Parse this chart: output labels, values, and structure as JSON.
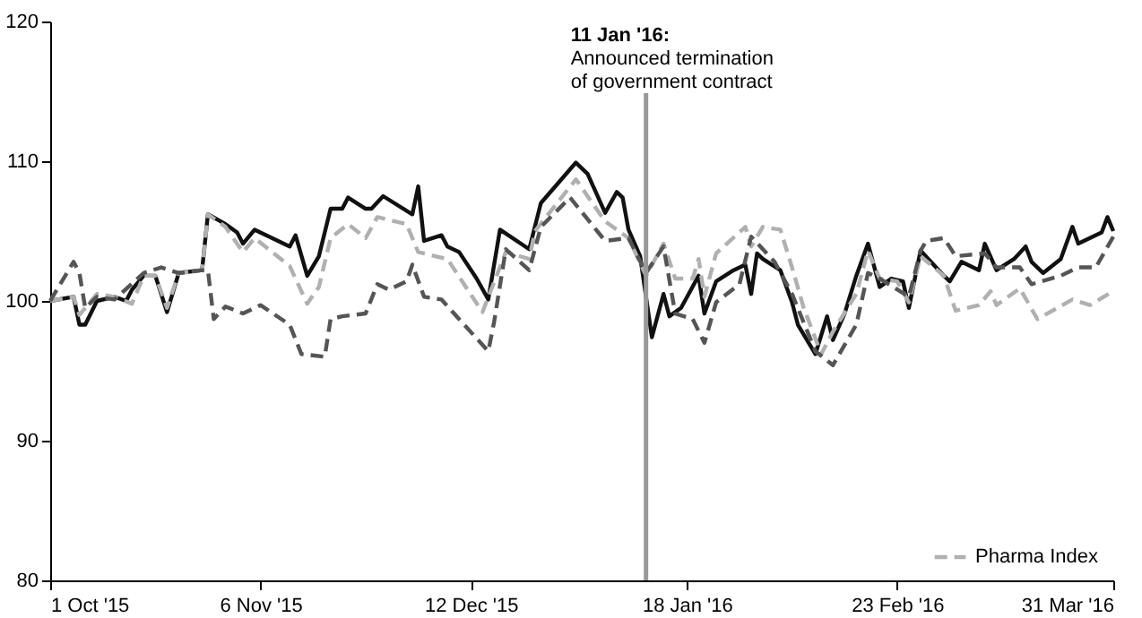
{
  "chart_data": {
    "type": "line",
    "xlim": [
      "2015-10-01",
      "2016-03-31"
    ],
    "xticks": [
      {
        "value": "2015-10-01",
        "label": "1 Oct '15"
      },
      {
        "value": "2015-11-06",
        "label": "6 Nov '15"
      },
      {
        "value": "2015-12-12",
        "label": "12 Dec '15"
      },
      {
        "value": "2016-01-18",
        "label": "18 Jan '16"
      },
      {
        "value": "2016-02-23",
        "label": "23 Feb '16"
      },
      {
        "value": "2016-03-31",
        "label": "31 Mar '16"
      }
    ],
    "ylim": [
      80,
      120
    ],
    "yticks": [
      80,
      90,
      100,
      110,
      120
    ],
    "grid": false,
    "legend": "bottom right",
    "ref_lines": [
      {
        "axis": "x",
        "value": "2016-01-11",
        "label": "11 Jan '16:\nAnnounced termination\nof government contract",
        "color": "#999999"
      }
    ],
    "series": [
      {
        "color": "#111111",
        "line_style": "solid",
        "x": [
          "2015-10-01",
          "2015-10-05",
          "2015-10-06",
          "2015-10-07",
          "2015-10-09",
          "2015-10-12",
          "2015-10-14",
          "2015-10-15",
          "2015-10-17",
          "2015-10-19",
          "2015-10-21",
          "2015-10-23",
          "2015-10-27",
          "2015-10-28",
          "2015-10-31",
          "2015-11-02",
          "2015-11-03",
          "2015-11-05",
          "2015-11-11",
          "2015-11-12",
          "2015-11-14",
          "2015-11-16",
          "2015-11-18",
          "2015-11-20",
          "2015-11-21",
          "2015-11-24",
          "2015-11-25",
          "2015-11-27",
          "2015-12-02",
          "2015-12-03",
          "2015-12-04",
          "2015-12-07",
          "2015-12-08",
          "2015-12-10",
          "2015-12-13",
          "2015-12-15",
          "2015-12-17",
          "2015-12-22",
          "2015-12-24",
          "2015-12-30",
          "2016-01-01",
          "2016-01-04",
          "2016-01-06",
          "2016-01-07",
          "2016-01-08",
          "2016-01-10",
          "2016-01-12",
          "2016-01-14",
          "2016-01-15",
          "2016-01-17",
          "2016-01-20",
          "2016-01-21",
          "2016-01-23",
          "2016-01-26",
          "2016-01-28",
          "2016-01-29",
          "2016-01-30",
          "2016-01-31",
          "2016-02-03",
          "2016-02-05",
          "2016-02-06",
          "2016-02-09",
          "2016-02-11",
          "2016-02-12",
          "2016-02-14",
          "2016-02-16",
          "2016-02-18",
          "2016-02-20",
          "2016-02-22",
          "2016-02-24",
          "2016-02-25",
          "2016-02-27",
          "2016-03-02",
          "2016-03-03",
          "2016-03-05",
          "2016-03-08",
          "2016-03-09",
          "2016-03-11",
          "2016-03-14",
          "2016-03-16",
          "2016-03-17",
          "2016-03-19",
          "2016-03-22",
          "2016-03-24",
          "2016-03-25",
          "2016-03-29",
          "2016-03-30",
          "2016-03-31"
        ],
        "values": [
          100,
          100.3,
          98.3,
          98.3,
          100,
          100.3,
          100,
          100.8,
          101.8,
          101.8,
          99.2,
          102,
          102.2,
          106.2,
          105.5,
          104.9,
          104.1,
          105.1,
          103.9,
          104.7,
          101.8,
          103.2,
          106.6,
          106.6,
          107.4,
          106.6,
          106.6,
          107.5,
          106.2,
          108.2,
          104.3,
          104.7,
          103.9,
          103.5,
          101.6,
          100.1,
          105.1,
          103.7,
          107,
          109.9,
          109.1,
          106.3,
          107.8,
          107.4,
          105.1,
          103.2,
          97.4,
          100.5,
          98.9,
          99.5,
          101.8,
          99.1,
          101.4,
          102.2,
          102.6,
          100.5,
          103.4,
          103,
          102.2,
          99.9,
          98.3,
          96.2,
          98.9,
          97.2,
          99.1,
          101.8,
          104.1,
          101,
          101.6,
          101.4,
          99.5,
          103.6,
          101.8,
          101.4,
          102.8,
          102.2,
          104.1,
          102.2,
          103,
          103.9,
          102.8,
          102,
          103,
          105.3,
          104.1,
          104.9,
          106,
          105
        ]
      },
      {
        "name": "Pharma Index",
        "color": "#b0b0b0",
        "line_style": "dashed",
        "x": [
          "2015-10-01",
          "2015-10-05",
          "2015-10-06",
          "2015-10-09",
          "2015-10-12",
          "2015-10-15",
          "2015-10-17",
          "2015-10-19",
          "2015-10-21",
          "2015-10-23",
          "2015-10-27",
          "2015-10-28",
          "2015-10-31",
          "2015-11-03",
          "2015-11-05",
          "2015-11-11",
          "2015-11-14",
          "2015-11-16",
          "2015-11-18",
          "2015-11-21",
          "2015-11-24",
          "2015-11-26",
          "2015-12-01",
          "2015-12-03",
          "2015-12-08",
          "2015-12-14",
          "2015-12-18",
          "2015-12-22",
          "2015-12-23",
          "2015-12-30",
          "2016-01-04",
          "2016-01-08",
          "2016-01-11",
          "2016-01-14",
          "2016-01-16",
          "2016-01-19",
          "2016-01-20",
          "2016-01-21",
          "2016-01-23",
          "2016-01-28",
          "2016-01-29",
          "2016-01-31",
          "2016-02-03",
          "2016-02-05",
          "2016-02-07",
          "2016-02-10",
          "2016-02-12",
          "2016-02-16",
          "2016-02-18",
          "2016-02-20",
          "2016-02-23",
          "2016-02-25",
          "2016-02-27",
          "2016-03-02",
          "2016-03-04",
          "2016-03-08",
          "2016-03-10",
          "2016-03-11",
          "2016-03-15",
          "2016-03-18",
          "2016-03-24",
          "2016-03-27",
          "2016-03-31"
        ],
        "values": [
          100,
          100.3,
          99,
          100.5,
          100.3,
          99.8,
          101.8,
          101.8,
          99.5,
          102,
          102.2,
          106.2,
          105.3,
          103.5,
          104.5,
          102.5,
          99.8,
          101,
          104.5,
          105.5,
          104.5,
          106,
          105.5,
          103.5,
          103,
          99.2,
          103.5,
          103,
          105,
          108.7,
          105.7,
          104.5,
          101.8,
          104.1,
          101.6,
          101.6,
          103,
          100.3,
          103.4,
          105.3,
          103.9,
          105.3,
          105.1,
          102.4,
          99.5,
          96.2,
          97.8,
          100.5,
          103.6,
          101.6,
          101.4,
          99.9,
          103.2,
          101.8,
          99.3,
          99.7,
          100.7,
          99.7,
          100.9,
          98.7,
          100.1,
          99.7,
          100.7
        ]
      },
      {
        "color": "#555555",
        "line_style": "dashed",
        "x": [
          "2015-10-01",
          "2015-10-05",
          "2015-10-06",
          "2015-10-07",
          "2015-10-09",
          "2015-10-12",
          "2015-10-17",
          "2015-10-20",
          "2015-10-23",
          "2015-10-27",
          "2015-10-28",
          "2015-10-29",
          "2015-10-31",
          "2015-11-03",
          "2015-11-06",
          "2015-11-11",
          "2015-11-13",
          "2015-11-17",
          "2015-11-18",
          "2015-11-20",
          "2015-11-24",
          "2015-11-26",
          "2015-11-28",
          "2015-12-01",
          "2015-12-02",
          "2015-12-04",
          "2015-12-07",
          "2015-12-10",
          "2015-12-15",
          "2015-12-16",
          "2015-12-18",
          "2015-12-22",
          "2015-12-24",
          "2015-12-29",
          "2016-01-04",
          "2016-01-08",
          "2016-01-11",
          "2016-01-14",
          "2016-01-16",
          "2016-01-19",
          "2016-01-21",
          "2016-01-23",
          "2016-01-27",
          "2016-01-29",
          "2016-02-02",
          "2016-02-05",
          "2016-02-09",
          "2016-02-12",
          "2016-02-16",
          "2016-02-18",
          "2016-02-20",
          "2016-02-25",
          "2016-02-27",
          "2016-02-28",
          "2016-03-02",
          "2016-03-04",
          "2016-03-09",
          "2016-03-11",
          "2016-03-15",
          "2016-03-17",
          "2016-03-22",
          "2016-03-25",
          "2016-03-28",
          "2016-03-31"
        ],
        "values": [
          100,
          102.8,
          102,
          99.5,
          100.3,
          100.1,
          102,
          102.4,
          102,
          102.2,
          102.2,
          98.7,
          99.6,
          99.1,
          99.7,
          98.3,
          96.2,
          96,
          98.7,
          98.9,
          99.1,
          101.2,
          100.8,
          101.4,
          102.6,
          100.3,
          100.1,
          98.7,
          96.4,
          98.5,
          103.7,
          102.2,
          105.3,
          107.4,
          104.3,
          104.5,
          102,
          103.9,
          99.1,
          98.7,
          97,
          99.9,
          101.2,
          104.6,
          102.8,
          100.5,
          96.4,
          95.4,
          98.3,
          102,
          101.6,
          100.3,
          103.6,
          104.3,
          104.5,
          103.2,
          103.4,
          102.4,
          102.4,
          101.2,
          101.8,
          102.4,
          102.4,
          104.6
        ]
      }
    ]
  }
}
